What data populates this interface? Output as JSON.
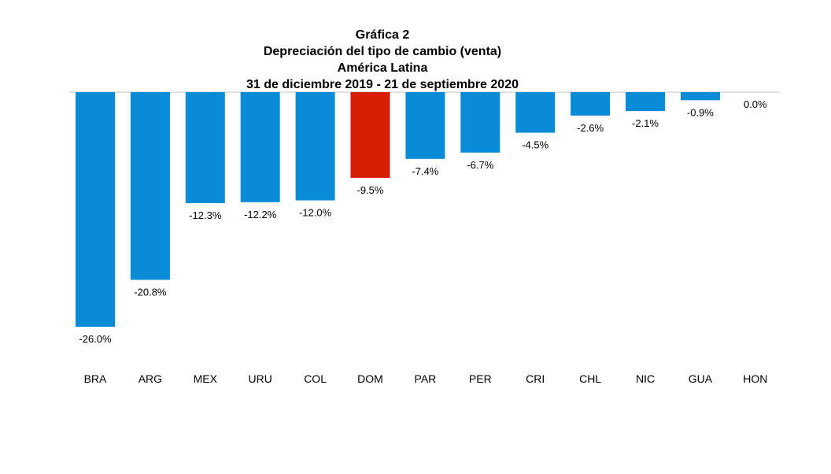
{
  "chart_data": {
    "type": "bar",
    "title_lines": [
      "Gráfica 2",
      "Depreciación del tipo de cambio (venta)",
      "América Latina",
      "31 de diciembre 2019 - 21 de septiembre 2020"
    ],
    "categories": [
      "BRA",
      "ARG",
      "MEX",
      "URU",
      "COL",
      "DOM",
      "PAR",
      "PER",
      "CRI",
      "CHL",
      "NIC",
      "GUA",
      "HON"
    ],
    "values": [
      -26.0,
      -20.8,
      -12.3,
      -12.2,
      -12.0,
      -9.5,
      -7.4,
      -6.7,
      -4.5,
      -2.6,
      -2.1,
      -0.9,
      0.0
    ],
    "data_labels": [
      "-26.0%",
      "-20.8%",
      "-12.3%",
      "-12.2%",
      "-12.0%",
      "-9.5%",
      "-7.4%",
      "-6.7%",
      "-4.5%",
      "-2.6%",
      "-2.1%",
      "-0.9%",
      "0.0%"
    ],
    "highlight_category": "DOM",
    "colors": {
      "default": "#0a8bd8",
      "highlight": "#d81e05",
      "axis": "#d9d9d9",
      "text": "#000000"
    },
    "ylim": [
      -26.0,
      0.0
    ],
    "xlabel": "",
    "ylabel": "",
    "grid": false,
    "legend": "none"
  }
}
